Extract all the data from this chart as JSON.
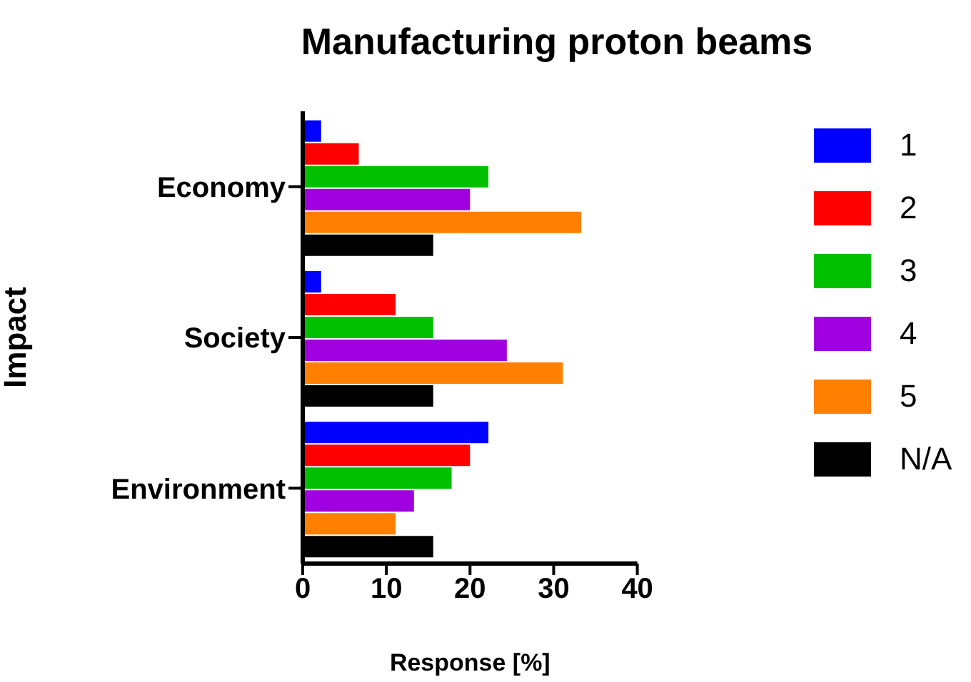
{
  "chart_data": {
    "type": "bar",
    "orientation": "horizontal",
    "title": "Manufacturing proton beams",
    "xlabel": "Response [%]",
    "ylabel": "Impact",
    "categories": [
      "Economy",
      "Society",
      "Environment"
    ],
    "series": [
      {
        "name": "1",
        "color": "#0000ff",
        "values": [
          2.2,
          2.2,
          22.2
        ]
      },
      {
        "name": "2",
        "color": "#ff0000",
        "values": [
          6.7,
          11.1,
          20
        ]
      },
      {
        "name": "3",
        "color": "#00c000",
        "values": [
          22.2,
          15.6,
          17.8
        ]
      },
      {
        "name": "4",
        "color": "#a000e0",
        "values": [
          20,
          24.4,
          13.3
        ]
      },
      {
        "name": "5",
        "color": "#ff8000",
        "values": [
          33.3,
          31.1,
          11.1
        ]
      },
      {
        "name": "N/A",
        "color": "#000000",
        "values": [
          15.6,
          15.6,
          15.6
        ]
      }
    ],
    "xlim": [
      0,
      40
    ],
    "xticks": [
      0,
      10,
      20,
      30,
      40
    ],
    "grid": false,
    "legend": "right"
  }
}
